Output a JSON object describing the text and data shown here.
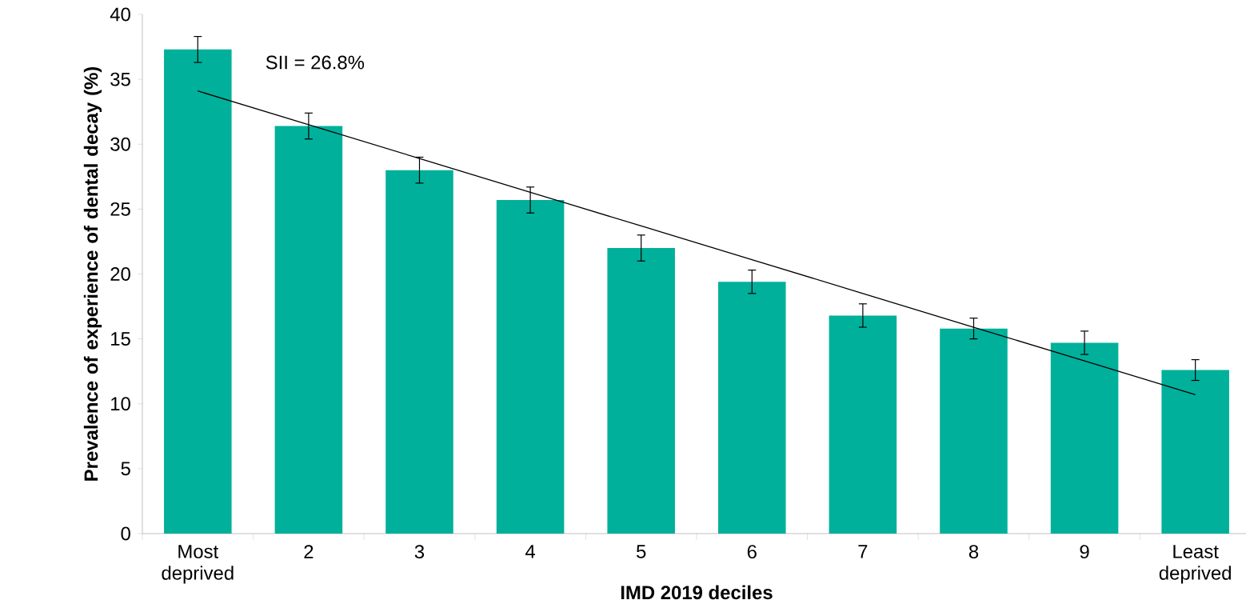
{
  "chart_data": {
    "type": "bar",
    "xlabel": "IMD 2019 deciles",
    "ylabel": "Prevalence of experience of dental decay (%)",
    "categories": [
      "Most deprived",
      "2",
      "3",
      "4",
      "5",
      "6",
      "7",
      "8",
      "9",
      "Least deprived"
    ],
    "series": [
      {
        "color": "#00b09b",
        "values": [
          37.3,
          31.4,
          28.0,
          25.7,
          22.0,
          19.4,
          16.8,
          15.8,
          14.7,
          12.6
        ],
        "errors": [
          1.0,
          1.0,
          1.0,
          1.0,
          1.0,
          0.9,
          0.9,
          0.8,
          0.9,
          0.8
        ]
      },
      {
        "type": "line",
        "color": "#000000",
        "values": [
          34.1,
          31.5,
          28.9,
          26.3,
          23.7,
          21.1,
          18.5,
          15.9,
          13.3,
          10.7
        ]
      }
    ],
    "ylim": [
      0,
      40
    ],
    "yticks": [
      0,
      5,
      10,
      15,
      20,
      25,
      30,
      35,
      40
    ],
    "annotations": [
      "SII = 26.8%"
    ]
  }
}
